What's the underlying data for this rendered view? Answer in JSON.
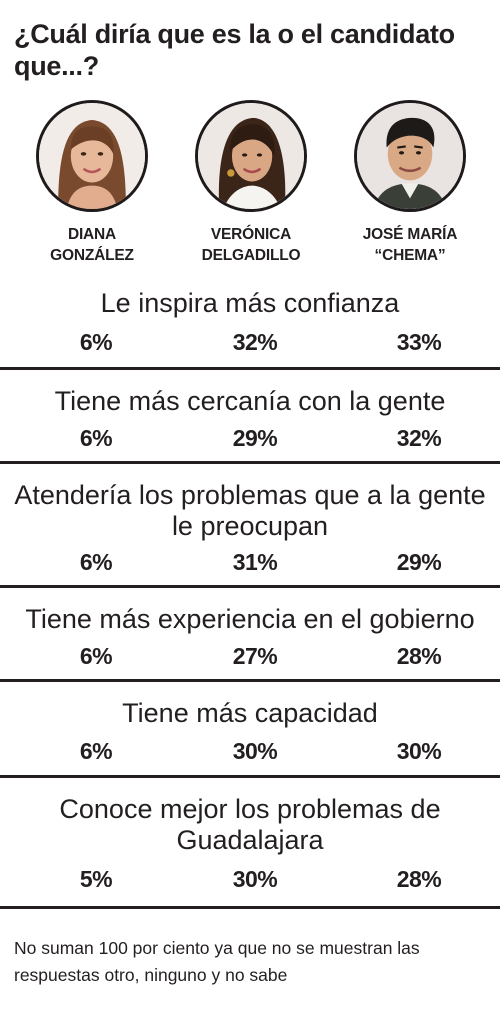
{
  "header": {
    "title": "¿Cuál diría que es la o el candidato que...?"
  },
  "candidates": [
    {
      "name_line1": "DIANA",
      "name_line2": "GONZÁLEZ"
    },
    {
      "name_line1": "VERÓNICA",
      "name_line2": "DELGADILLO"
    },
    {
      "name_line1": "JOSÉ MARÍA",
      "name_line2": "“CHEMA”"
    }
  ],
  "chart_data": {
    "type": "table",
    "title": "¿Cuál diría que es la o el candidato que...?",
    "columns": [
      "DIANA GONZÁLEZ",
      "VERÓNICA DELGADILLO",
      "JOSÉ MARÍA “CHEMA”"
    ],
    "rows": [
      {
        "label": "Le inspira más confianza",
        "values": [
          "6%",
          "32%",
          "33%"
        ]
      },
      {
        "label": "Tiene más cercanía con la gente",
        "values": [
          "6%",
          "29%",
          "32%"
        ]
      },
      {
        "label": "Atendería los problemas que a la gente le preocupan",
        "values": [
          "6%",
          "31%",
          "29%"
        ]
      },
      {
        "label": "Tiene más experiencia en el gobierno",
        "values": [
          "6%",
          "27%",
          "28%"
        ]
      },
      {
        "label": "Tiene más capacidad",
        "values": [
          "6%",
          "30%",
          "30%"
        ]
      },
      {
        "label": "Conoce mejor los problemas de Guadalajara",
        "values": [
          "5%",
          "30%",
          "28%"
        ]
      }
    ]
  },
  "footer": {
    "note": "No suman 100 por ciento ya que no se muestran las respuestas otro, ninguno y no sabe"
  },
  "colors": {
    "text": "#231f20",
    "rule": "#231f20",
    "photo_ring": "#1f1a1b"
  }
}
